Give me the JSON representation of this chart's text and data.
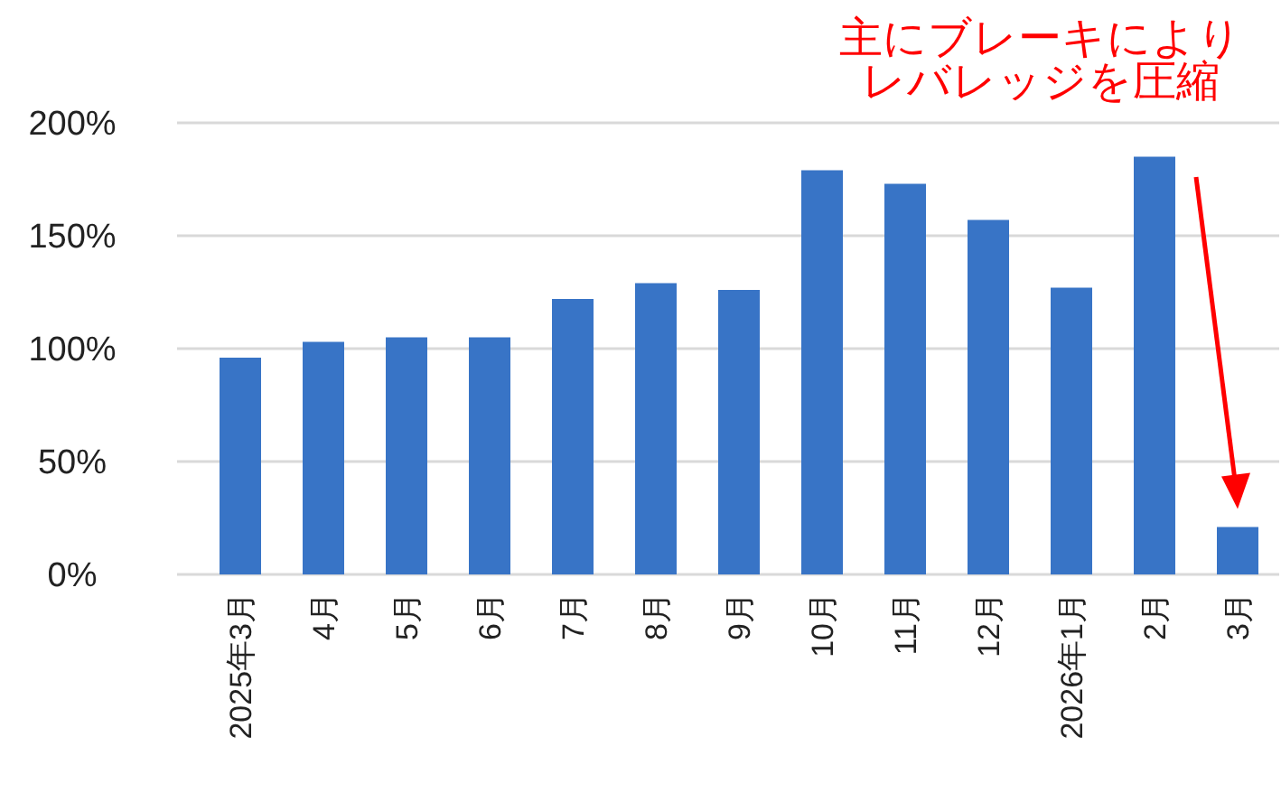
{
  "chart_data": {
    "type": "bar",
    "categories": [
      "2025年3月",
      "4月",
      "5月",
      "6月",
      "7月",
      "8月",
      "9月",
      "10月",
      "11月",
      "12月",
      "2026年1月",
      "2月",
      "3月"
    ],
    "values": [
      96,
      103,
      105,
      105,
      122,
      129,
      126,
      179,
      173,
      157,
      127,
      185,
      21
    ],
    "color": "#3874c6",
    "ylim": [
      0,
      200
    ],
    "yticks": [
      {
        "value": 0,
        "label": "0%"
      },
      {
        "value": 50,
        "label": "50%"
      },
      {
        "value": 100,
        "label": "100%"
      },
      {
        "value": 150,
        "label": "150%"
      },
      {
        "value": 200,
        "label": "200%"
      }
    ],
    "grid": "y",
    "annotations": [
      "主にブレーキにより",
      "レバレッジを圧縮"
    ]
  }
}
